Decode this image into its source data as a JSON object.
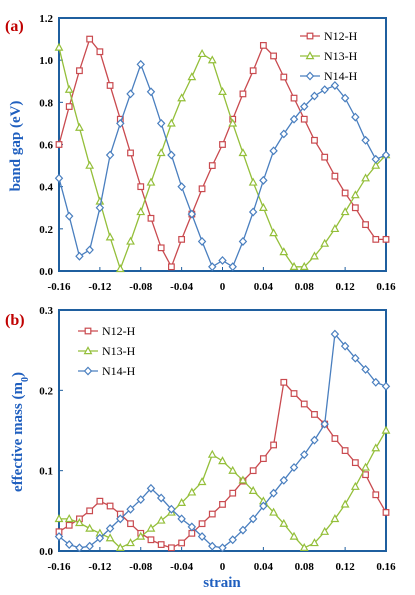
{
  "colors": {
    "N12-H": "#c94a4f",
    "N13-H": "#94bf3a",
    "N14-H": "#4a7fbf",
    "axis": "#1f5f9f",
    "label": "#1f5fbf",
    "panel_label": "#c00000"
  },
  "chart_data": [
    {
      "type": "line",
      "panel_label": "(a)",
      "xlabel": "",
      "ylabel": "band gap (eV)",
      "xlim": [
        -0.16,
        0.16
      ],
      "ylim": [
        0,
        1.2
      ],
      "x_ticks": [
        "-0.16",
        "-0.12",
        "-0.08",
        "-0.04",
        "0",
        "0.04",
        "0.08",
        "0.12",
        "0.16"
      ],
      "y_ticks": [
        "0.0",
        "0.2",
        "0.4",
        "0.6",
        "0.8",
        "1.0",
        "1.2"
      ],
      "legend_position": "top-right",
      "series": [
        {
          "name": "N12-H",
          "marker": "square",
          "x": [
            -0.16,
            -0.15,
            -0.14,
            -0.13,
            -0.12,
            -0.11,
            -0.1,
            -0.09,
            -0.08,
            -0.07,
            -0.06,
            -0.05,
            -0.04,
            -0.03,
            -0.02,
            -0.01,
            0.0,
            0.01,
            0.02,
            0.03,
            0.04,
            0.05,
            0.06,
            0.07,
            0.08,
            0.09,
            0.1,
            0.11,
            0.12,
            0.13,
            0.14,
            0.15,
            0.16
          ],
          "y": [
            0.6,
            0.78,
            0.95,
            1.1,
            1.04,
            0.88,
            0.72,
            0.56,
            0.4,
            0.25,
            0.11,
            0.02,
            0.15,
            0.27,
            0.39,
            0.5,
            0.6,
            0.72,
            0.84,
            0.95,
            1.07,
            1.02,
            0.92,
            0.82,
            0.72,
            0.62,
            0.54,
            0.45,
            0.37,
            0.3,
            0.22,
            0.15,
            0.15
          ]
        },
        {
          "name": "N13-H",
          "marker": "triangle",
          "x": [
            -0.16,
            -0.15,
            -0.14,
            -0.13,
            -0.12,
            -0.11,
            -0.1,
            -0.09,
            -0.08,
            -0.07,
            -0.06,
            -0.05,
            -0.04,
            -0.03,
            -0.02,
            -0.01,
            0.0,
            0.01,
            0.02,
            0.03,
            0.04,
            0.05,
            0.06,
            0.07,
            0.08,
            0.09,
            0.1,
            0.11,
            0.12,
            0.13,
            0.14,
            0.15,
            0.16
          ],
          "y": [
            1.06,
            0.86,
            0.68,
            0.5,
            0.33,
            0.16,
            0.01,
            0.14,
            0.28,
            0.42,
            0.56,
            0.7,
            0.82,
            0.92,
            1.03,
            1.0,
            0.85,
            0.7,
            0.56,
            0.42,
            0.3,
            0.18,
            0.09,
            0.02,
            0.02,
            0.07,
            0.13,
            0.2,
            0.28,
            0.36,
            0.44,
            0.5,
            0.55
          ]
        },
        {
          "name": "N14-H",
          "marker": "diamond",
          "x": [
            -0.16,
            -0.15,
            -0.14,
            -0.13,
            -0.12,
            -0.11,
            -0.1,
            -0.09,
            -0.08,
            -0.07,
            -0.06,
            -0.05,
            -0.04,
            -0.03,
            -0.02,
            -0.01,
            0.0,
            0.01,
            0.02,
            0.03,
            0.04,
            0.05,
            0.06,
            0.07,
            0.08,
            0.09,
            0.1,
            0.11,
            0.12,
            0.13,
            0.14,
            0.15,
            0.16
          ],
          "y": [
            0.44,
            0.26,
            0.07,
            0.1,
            0.3,
            0.55,
            0.7,
            0.84,
            0.98,
            0.85,
            0.7,
            0.55,
            0.4,
            0.27,
            0.14,
            0.02,
            0.05,
            0.02,
            0.14,
            0.28,
            0.43,
            0.57,
            0.65,
            0.72,
            0.78,
            0.83,
            0.86,
            0.88,
            0.82,
            0.73,
            0.62,
            0.53,
            0.55
          ]
        }
      ]
    },
    {
      "type": "line",
      "panel_label": "(b)",
      "xlabel": "strain",
      "ylabel": "effective mass (m",
      "ylabel_sub": "0",
      "ylabel_end": ")",
      "xlim": [
        -0.16,
        0.16
      ],
      "ylim": [
        0,
        0.3
      ],
      "x_ticks": [
        "-0.16",
        "-0.12",
        "-0.08",
        "-0.04",
        "0",
        "0.04",
        "0.08",
        "0.12",
        "0.16"
      ],
      "y_ticks": [
        "0.0",
        "0.1",
        "0.2",
        "0.3"
      ],
      "legend_position": "top-left",
      "series": [
        {
          "name": "N12-H",
          "marker": "square",
          "x": [
            -0.16,
            -0.15,
            -0.14,
            -0.13,
            -0.12,
            -0.11,
            -0.1,
            -0.09,
            -0.08,
            -0.07,
            -0.06,
            -0.05,
            -0.04,
            -0.03,
            -0.02,
            -0.01,
            0.0,
            0.01,
            0.02,
            0.03,
            0.04,
            0.05,
            0.06,
            0.07,
            0.08,
            0.09,
            0.1,
            0.11,
            0.12,
            0.13,
            0.14,
            0.15,
            0.16
          ],
          "y": [
            0.024,
            0.032,
            0.04,
            0.05,
            0.062,
            0.056,
            0.046,
            0.034,
            0.022,
            0.014,
            0.008,
            0.004,
            0.01,
            0.022,
            0.034,
            0.046,
            0.058,
            0.072,
            0.087,
            0.1,
            0.115,
            0.132,
            0.21,
            0.196,
            0.183,
            0.17,
            0.158,
            0.14,
            0.125,
            0.11,
            0.095,
            0.07,
            0.048
          ]
        },
        {
          "name": "N13-H",
          "marker": "triangle",
          "x": [
            -0.16,
            -0.15,
            -0.14,
            -0.13,
            -0.12,
            -0.11,
            -0.1,
            -0.09,
            -0.08,
            -0.07,
            -0.06,
            -0.05,
            -0.04,
            -0.03,
            -0.02,
            -0.01,
            0.0,
            0.01,
            0.02,
            0.03,
            0.04,
            0.05,
            0.06,
            0.07,
            0.08,
            0.09,
            0.1,
            0.11,
            0.12,
            0.13,
            0.14,
            0.15,
            0.16
          ],
          "y": [
            0.04,
            0.04,
            0.035,
            0.028,
            0.022,
            0.016,
            0.004,
            0.01,
            0.018,
            0.028,
            0.038,
            0.048,
            0.06,
            0.073,
            0.086,
            0.12,
            0.112,
            0.1,
            0.088,
            0.075,
            0.062,
            0.048,
            0.034,
            0.018,
            0.004,
            0.01,
            0.024,
            0.04,
            0.058,
            0.08,
            0.104,
            0.128,
            0.15
          ]
        },
        {
          "name": "N14-H",
          "marker": "diamond",
          "x": [
            -0.16,
            -0.15,
            -0.14,
            -0.13,
            -0.12,
            -0.11,
            -0.1,
            -0.09,
            -0.08,
            -0.07,
            -0.06,
            -0.05,
            -0.04,
            -0.03,
            -0.02,
            -0.01,
            0.0,
            0.01,
            0.02,
            0.03,
            0.04,
            0.05,
            0.06,
            0.07,
            0.08,
            0.09,
            0.1,
            0.11,
            0.12,
            0.13,
            0.14,
            0.15,
            0.16
          ],
          "y": [
            0.018,
            0.008,
            0.004,
            0.006,
            0.016,
            0.028,
            0.04,
            0.052,
            0.064,
            0.078,
            0.066,
            0.052,
            0.04,
            0.03,
            0.018,
            0.006,
            0.004,
            0.014,
            0.026,
            0.04,
            0.056,
            0.072,
            0.088,
            0.104,
            0.12,
            0.138,
            0.158,
            0.27,
            0.255,
            0.24,
            0.226,
            0.21,
            0.205
          ]
        }
      ]
    }
  ]
}
